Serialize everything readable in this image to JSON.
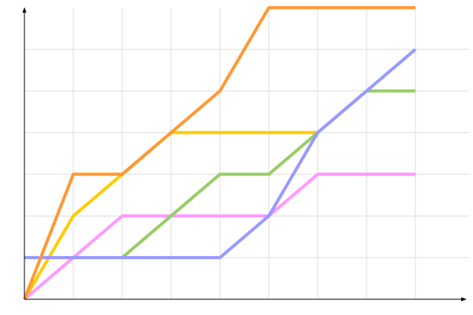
{
  "chart_data": {
    "type": "line",
    "title": "",
    "xlabel": "",
    "ylabel": "",
    "x": [
      0,
      1,
      2,
      3,
      4,
      5,
      6,
      7,
      8
    ],
    "xlim": [
      0,
      9
    ],
    "ylim": [
      0,
      7
    ],
    "grid": true,
    "legend": "none",
    "series": [
      {
        "color": "#ffcc00",
        "points": [
          [
            0,
            0
          ],
          [
            1,
            2
          ],
          [
            2,
            3
          ],
          [
            3,
            4
          ],
          [
            4,
            4
          ],
          [
            5,
            4
          ],
          [
            6,
            4
          ]
        ]
      },
      {
        "color": "#ff99ff",
        "points": [
          [
            0,
            0
          ],
          [
            1,
            1
          ],
          [
            2,
            2
          ],
          [
            3,
            2
          ],
          [
            4,
            2
          ],
          [
            5,
            2
          ],
          [
            6,
            3
          ],
          [
            7,
            3
          ],
          [
            8,
            3
          ]
        ]
      },
      {
        "color": "#99cc66",
        "points": [
          [
            2,
            1
          ],
          [
            3,
            2
          ],
          [
            4,
            3
          ],
          [
            5,
            3
          ],
          [
            6,
            4
          ],
          [
            7,
            5
          ],
          [
            8,
            5
          ]
        ]
      },
      {
        "color": "#9999ff",
        "points": [
          [
            0,
            1
          ],
          [
            1,
            1
          ],
          [
            2,
            1
          ],
          [
            3,
            1
          ],
          [
            4,
            1
          ],
          [
            5,
            2
          ],
          [
            6,
            4
          ],
          [
            7,
            5
          ],
          [
            8,
            6
          ]
        ]
      },
      {
        "color": "#ff9933",
        "points": [
          [
            0,
            0
          ],
          [
            1,
            3
          ],
          [
            2,
            3
          ],
          [
            3,
            4
          ],
          [
            4,
            5
          ],
          [
            5,
            7
          ],
          [
            6,
            7
          ],
          [
            7,
            7
          ],
          [
            8,
            7
          ]
        ]
      }
    ]
  }
}
